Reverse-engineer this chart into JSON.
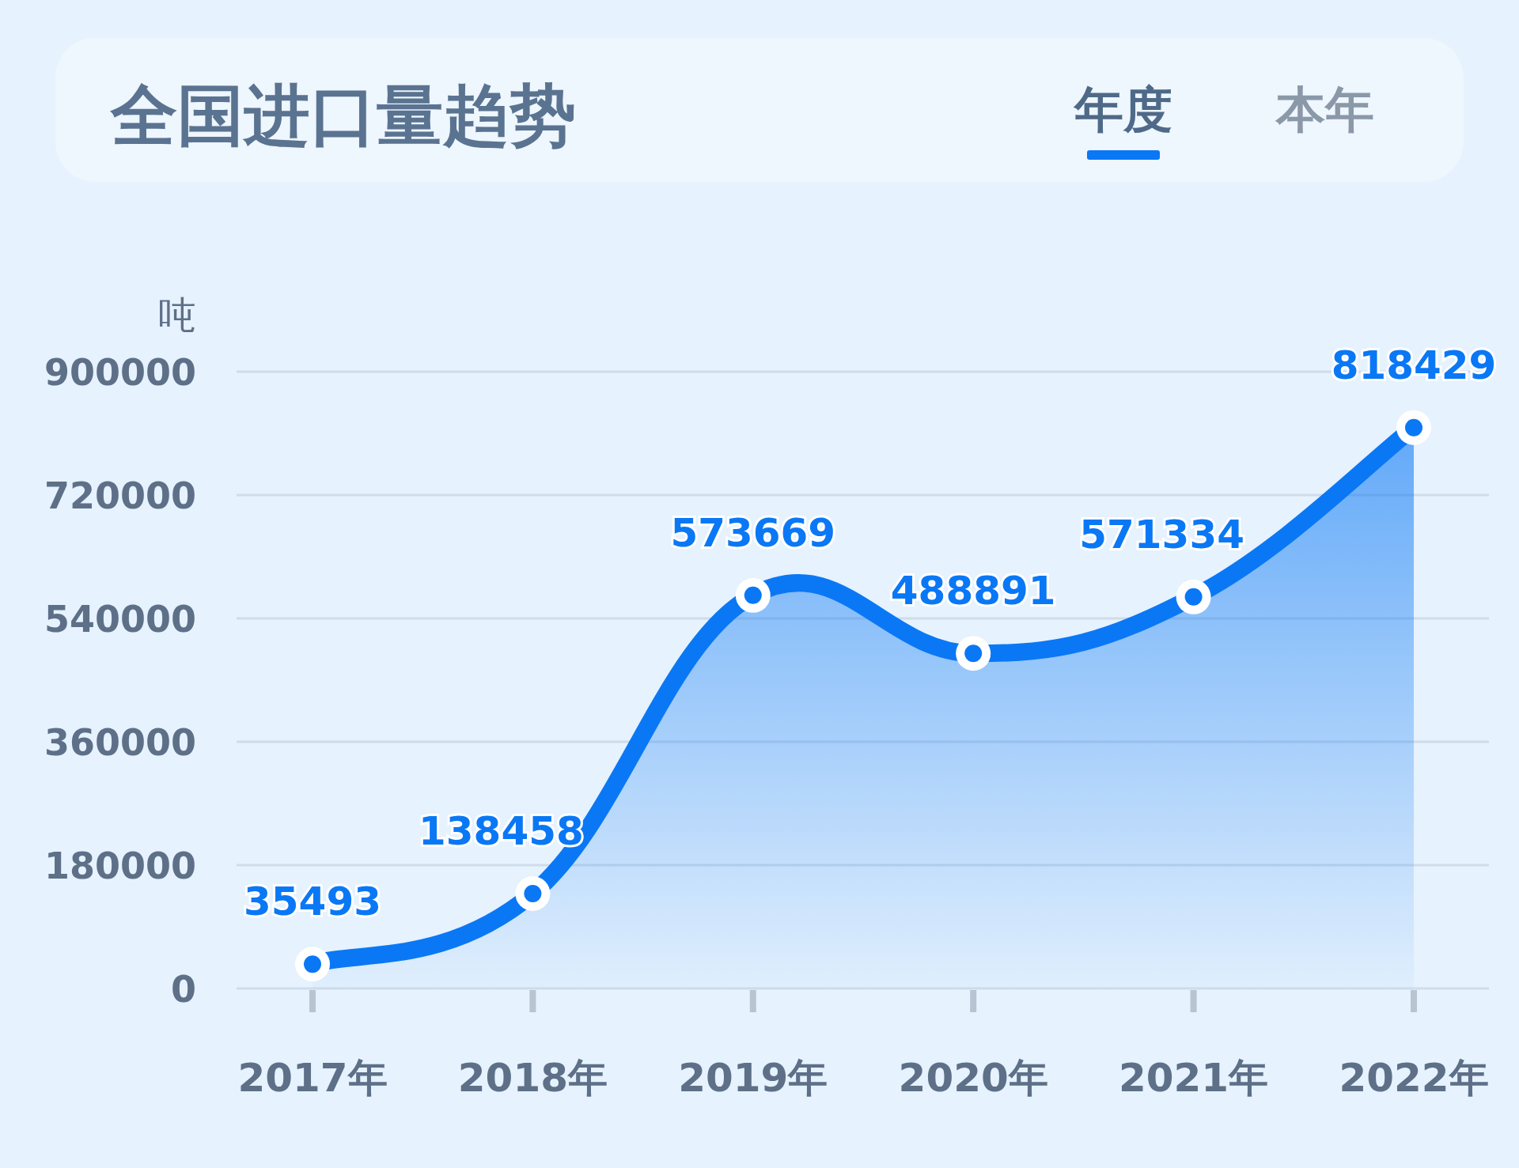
{
  "chart_data": {
    "type": "area",
    "title": "全国进口量趋势",
    "ylabel": "吨",
    "annotations": [
      "年度",
      "本年"
    ],
    "categories": [
      "2017年",
      "2018年",
      "2019年",
      "2020年",
      "2021年",
      "2022年"
    ],
    "values": [
      35493,
      138458,
      573669,
      488891,
      571334,
      818429
    ],
    "color": "#0a78f5",
    "ylim": [
      0,
      900000
    ],
    "yticks": [
      0,
      180000,
      360000,
      540000,
      720000,
      900000
    ],
    "grid": "y",
    "marker": "circle",
    "data_labels": true
  }
}
